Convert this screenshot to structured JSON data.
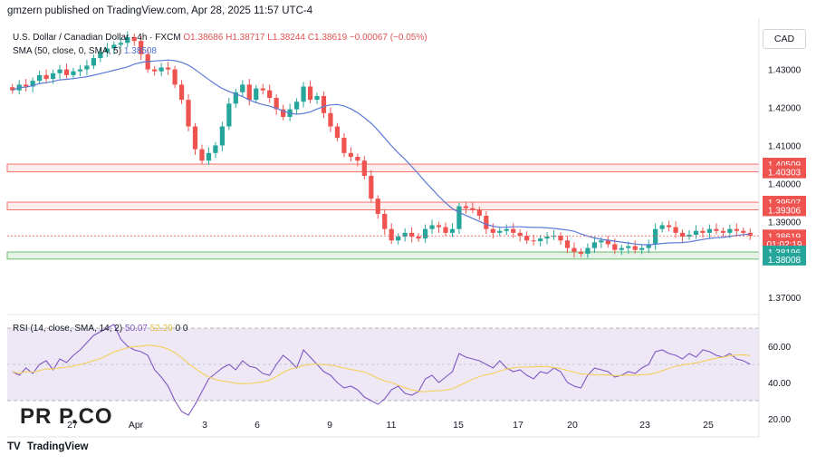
{
  "header": {
    "published": "gmzern published on TradingView.com, Apr 28, 2025 11:57 UTC-4"
  },
  "legend": {
    "symbol": "U.S. Dollar / Canadian Dollar · 4h · FXCM",
    "open": "O1.38686",
    "high": "H1.38717",
    "low": "L1.38244",
    "close": "C1.38619",
    "change": "−0.00067 (−0.05%)",
    "sma_label": "SMA (50, close, 0, SMA, 5)",
    "sma_value": "1.38508"
  },
  "rsi_legend": {
    "label": "RSI (14, close, SMA, 14, 2)",
    "rsi_value": "50.07",
    "ma_value": "52.29",
    "extra": "0  0"
  },
  "currency_button": "CAD",
  "footer": {
    "logo": "TV",
    "name": "TradingView"
  },
  "watermark": "PR  P.CO",
  "colors": {
    "up": "#26a69a",
    "down": "#ef5350",
    "sma": "#5b7ad6",
    "rsi": "#7e57c2",
    "rsi_ma": "#f5d05a",
    "band_fill": "#ede7f6"
  },
  "chart_data": {
    "type": "candlestick",
    "price_axis": {
      "ylim": [
        1.3655,
        1.4435
      ],
      "ticks": [
        1.37,
        1.38,
        1.39,
        1.4,
        1.41,
        1.42,
        1.43
      ],
      "tick_labels": [
        "1.37000",
        "1.38000",
        "1.39000",
        "1.40000",
        "1.41000",
        "1.42000",
        "1.43000"
      ]
    },
    "x_axis": {
      "tick_labels": [
        "27",
        "Apr",
        "3",
        "6",
        "9",
        "11",
        "15",
        "17",
        "20",
        "23",
        "25"
      ]
    },
    "price_badges": [
      {
        "label": "1.40509",
        "value": 1.40509,
        "color": "#ef5350"
      },
      {
        "label": "1.40303",
        "value": 1.40303,
        "color": "#ef5350"
      },
      {
        "label": "1.39507",
        "value": 1.39507,
        "color": "#ef5350"
      },
      {
        "label": "1.39306",
        "value": 1.39306,
        "color": "#ef5350"
      },
      {
        "label": "1.38619",
        "value": 1.38619,
        "color": "#ef5350"
      },
      {
        "label": "01:02:19",
        "value": 1.3841,
        "color": "#ef5350"
      },
      {
        "label": "1.38196",
        "value": 1.38196,
        "color": "#26a69a"
      },
      {
        "label": "1.38008",
        "value": 1.38008,
        "color": "#26a69a"
      }
    ],
    "zones": [
      {
        "name": "resistance-upper",
        "from": 1.40303,
        "to": 1.40509
      },
      {
        "name": "resistance-lower",
        "from": 1.39306,
        "to": 1.39507
      },
      {
        "name": "support",
        "from": 1.38008,
        "to": 1.38196
      }
    ],
    "closes": [
      1.4245,
      1.426,
      1.4255,
      1.427,
      1.4285,
      1.4275,
      1.429,
      1.43,
      1.4285,
      1.4295,
      1.43,
      1.431,
      1.433,
      1.4345,
      1.4355,
      1.4365,
      1.437,
      1.4385,
      1.4375,
      1.434,
      1.43,
      1.4295,
      1.4305,
      1.43,
      1.426,
      1.422,
      1.415,
      1.409,
      1.406,
      1.408,
      1.41,
      1.415,
      1.421,
      1.424,
      1.426,
      1.422,
      1.425,
      1.4245,
      1.4225,
      1.4195,
      1.4175,
      1.4195,
      1.4215,
      1.4255,
      1.422,
      1.423,
      1.4185,
      1.415,
      1.412,
      1.408,
      1.407,
      1.406,
      1.402,
      1.396,
      1.392,
      1.388,
      1.385,
      1.386,
      1.387,
      1.386,
      1.3855,
      1.388,
      1.389,
      1.3885,
      1.387,
      1.388,
      1.394,
      1.3935,
      1.393,
      1.3915,
      1.388,
      1.387,
      1.3875,
      1.388,
      1.387,
      1.3862,
      1.385,
      1.3848,
      1.3855,
      1.386,
      1.3862,
      1.385,
      1.383,
      1.382,
      1.3815,
      1.383,
      1.3845,
      1.385,
      1.384,
      1.3825,
      1.383,
      1.3835,
      1.3825,
      1.383,
      1.384,
      1.388,
      1.389,
      1.3885,
      1.387,
      1.386,
      1.3865,
      1.3875,
      1.387,
      1.388,
      1.3875,
      1.387,
      1.388,
      1.3875,
      1.387,
      1.3862
    ],
    "sma_last": 1.38508,
    "rsi_axis": {
      "ylim": [
        12,
        75
      ],
      "ticks": [
        20,
        40,
        60
      ],
      "tick_labels": [
        "20.00",
        "40.00",
        "60.00"
      ],
      "band": [
        30,
        70
      ],
      "mid": 50
    },
    "rsi": [
      46,
      44,
      48,
      45,
      50,
      52,
      47,
      53,
      51,
      55,
      58,
      62,
      66,
      68,
      70,
      72,
      64,
      60,
      58,
      57,
      55,
      47,
      43,
      38,
      30,
      24,
      22,
      28,
      35,
      42,
      45,
      48,
      50,
      47,
      52,
      49,
      48,
      45,
      44,
      50,
      55,
      52,
      48,
      58,
      54,
      50,
      46,
      44,
      40,
      37,
      38,
      36,
      32,
      30,
      28,
      31,
      36,
      38,
      34,
      33,
      35,
      42,
      44,
      40,
      43,
      46,
      56,
      54,
      53,
      52,
      50,
      48,
      52,
      48,
      46,
      47,
      44,
      42,
      46,
      45,
      48,
      46,
      40,
      38,
      37,
      44,
      48,
      47,
      46,
      43,
      44,
      46,
      45,
      48,
      50,
      57,
      58,
      56,
      55,
      53,
      56,
      54,
      58,
      57,
      55,
      54,
      56,
      53,
      52,
      50
    ]
  }
}
